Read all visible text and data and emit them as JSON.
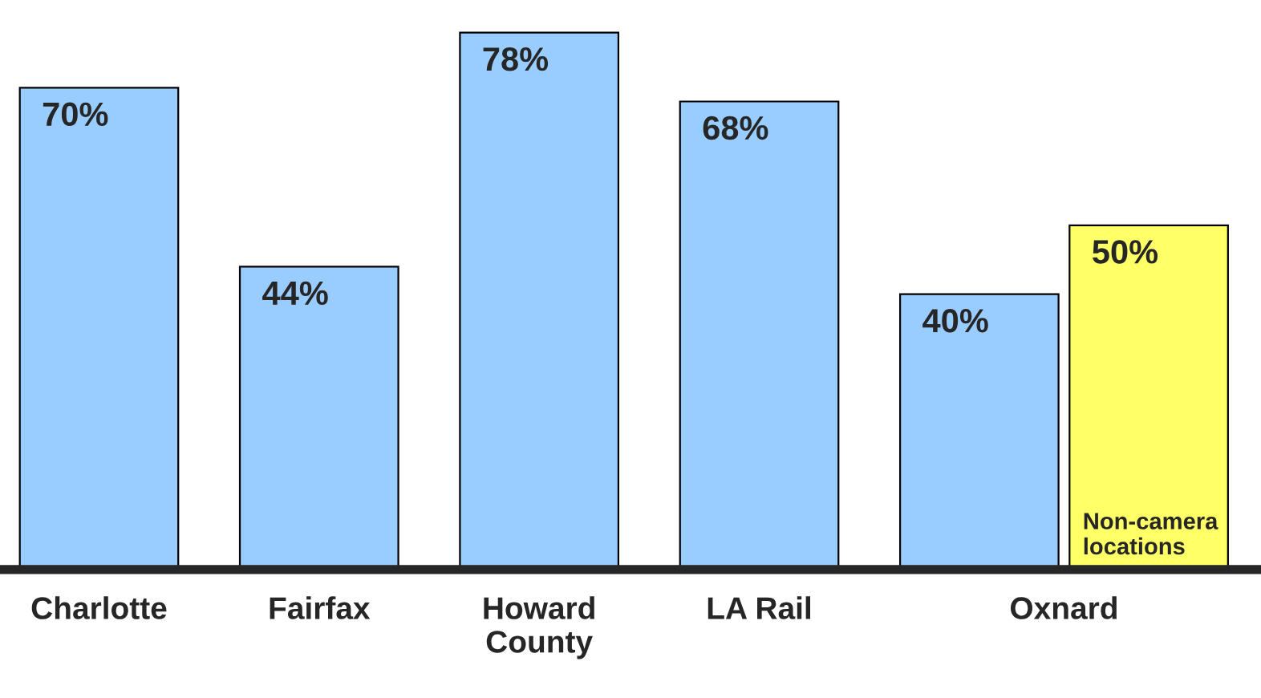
{
  "chart_data": {
    "type": "bar",
    "categories": [
      "Charlotte",
      "Fairfax",
      "Howard\nCounty",
      "LA Rail",
      "Oxnard"
    ],
    "series": [
      {
        "color": "#99ccff",
        "values": [
          70,
          44,
          78,
          68,
          40
        ],
        "value_labels": [
          "70%",
          "44%",
          "78%",
          "68%",
          "40%"
        ]
      },
      {
        "name": "Non-camera\nlocations",
        "color": "#ffff66",
        "values": [
          null,
          null,
          null,
          null,
          50
        ],
        "value_labels": [
          null,
          null,
          null,
          null,
          "50%"
        ]
      }
    ],
    "tick_labels": "x",
    "grid": false,
    "legend": false
  }
}
